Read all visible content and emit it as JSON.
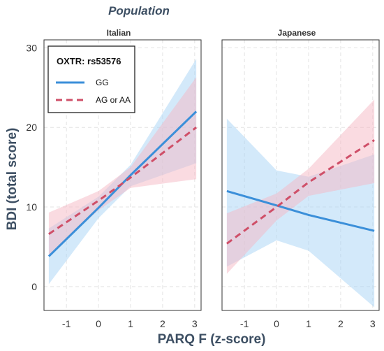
{
  "chart_data": {
    "type": "line",
    "title": "Population",
    "xlabel": "PARQ F (z-score)",
    "ylabel": "BDI (total score)",
    "xlim": [
      -1.7,
      3.2
    ],
    "ylim": [
      -3.0,
      31.0
    ],
    "xticks": [
      "-1",
      "0",
      "1",
      "2",
      "3"
    ],
    "yticks": [
      "0",
      "10",
      "20",
      "30"
    ],
    "xtick_values": [
      -1,
      0,
      1,
      2,
      3
    ],
    "ytick_values": [
      0,
      10,
      20,
      30
    ],
    "grid": true,
    "legend": {
      "title": "OXTR: rs53576",
      "placement": "top-left",
      "entries": [
        {
          "label": "GG",
          "color": "#3b8fd9",
          "dash": "solid"
        },
        {
          "label": "AG or AA",
          "color": "#cf4f68",
          "dash": "dashed"
        }
      ]
    },
    "panels": [
      {
        "name": "Italian",
        "series": [
          {
            "name": "GG",
            "color": "#3b8fd9",
            "band_color": "#a8d4f5",
            "x": [
              -1.55,
              0,
              1,
              3.05
            ],
            "y": [
              3.8,
              9.9,
              14.0,
              22.0
            ],
            "ci_lower": [
              0.3,
              8.6,
              12.6,
              15.5
            ],
            "ci_upper": [
              7.3,
              11.3,
              15.3,
              28.6
            ]
          },
          {
            "name": "AG or AA",
            "color": "#cf4f68",
            "band_color": "#f5b8c4",
            "x": [
              -1.55,
              0,
              1,
              3.05
            ],
            "y": [
              6.6,
              10.8,
              13.7,
              20.0
            ],
            "ci_lower": [
              4.0,
              9.6,
              12.4,
              13.5
            ],
            "ci_upper": [
              9.3,
              12.0,
              15.0,
              26.3
            ]
          }
        ]
      },
      {
        "name": "Japanese",
        "series": [
          {
            "name": "GG",
            "color": "#3b8fd9",
            "band_color": "#a8d4f5",
            "x": [
              -1.55,
              0,
              1.0,
              3.05
            ],
            "y": [
              12.0,
              10.2,
              9.0,
              7.0
            ],
            "ci_lower": [
              2.5,
              5.8,
              4.5,
              -2.6
            ],
            "ci_upper": [
              21.1,
              14.6,
              13.8,
              16.6
            ]
          },
          {
            "name": "AG or AA",
            "color": "#cf4f68",
            "band_color": "#f5b8c4",
            "x": [
              -1.55,
              0,
              1.0,
              3.05
            ],
            "y": [
              5.4,
              10.0,
              13.1,
              18.4
            ],
            "ci_lower": [
              1.6,
              8.3,
              11.4,
              13.0
            ],
            "ci_upper": [
              9.2,
              11.7,
              14.8,
              23.5
            ]
          }
        ]
      }
    ]
  }
}
